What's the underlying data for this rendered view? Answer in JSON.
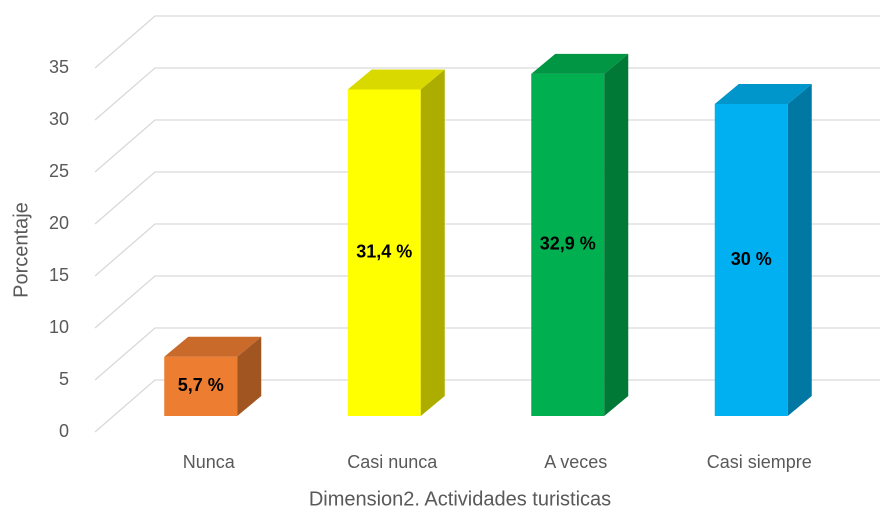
{
  "chart_data": {
    "type": "bar3d",
    "categories": [
      "Nunca",
      "Casi nunca",
      "A veces",
      "Casi siempre"
    ],
    "values": [
      5.7,
      31.4,
      32.9,
      30
    ],
    "value_labels": [
      "5,7 %",
      "31,4 %",
      "32,9 %",
      "30 %"
    ],
    "colors": [
      "#ed7d31",
      "#ffff00",
      "#00b050",
      "#00b0f0"
    ],
    "x_label": "Dimension2. Actividades turisticas",
    "y_label": "Porcentaje",
    "ylim": [
      0,
      35
    ],
    "yticks": [
      0,
      5,
      10,
      15,
      20,
      25,
      30,
      35
    ],
    "grid": true
  }
}
